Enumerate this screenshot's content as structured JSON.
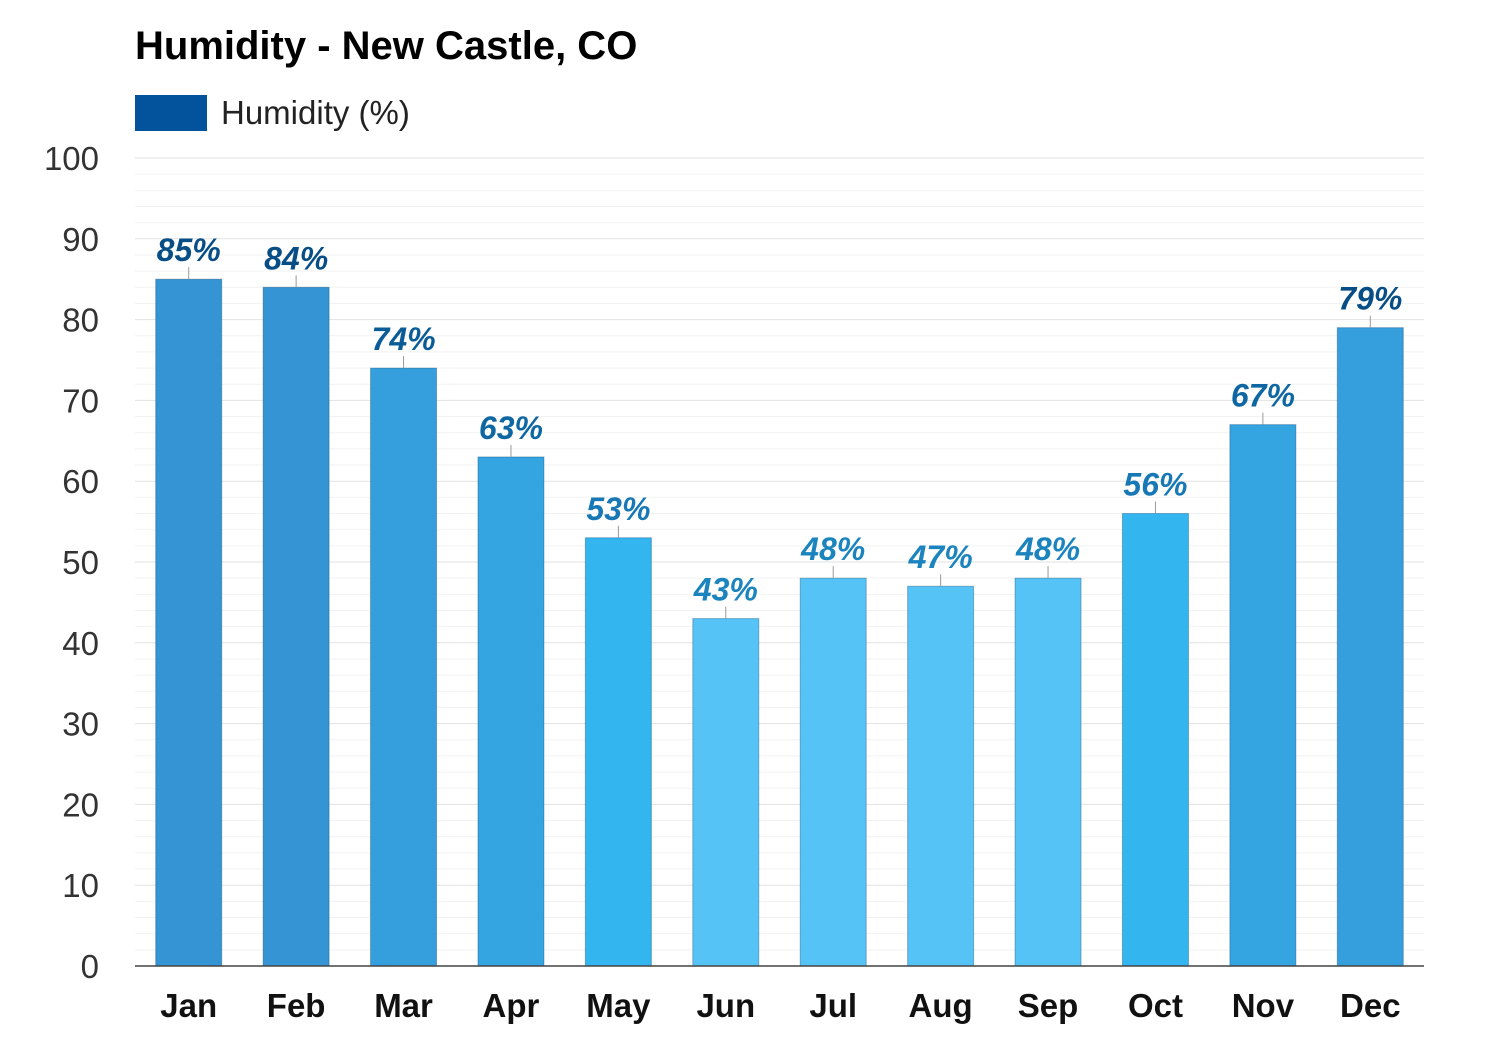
{
  "chart_data": {
    "type": "bar",
    "title": "Humidity - New Castle, CO",
    "legend": {
      "placement": "top-left",
      "entries": [
        {
          "name": "Humidity (%)",
          "color": "#03539c"
        }
      ]
    },
    "categories": [
      "Jan",
      "Feb",
      "Mar",
      "Apr",
      "May",
      "Jun",
      "Jul",
      "Aug",
      "Sep",
      "Oct",
      "Nov",
      "Dec"
    ],
    "series": [
      {
        "name": "Humidity (%)",
        "values": [
          85,
          84,
          74,
          63,
          53,
          43,
          48,
          47,
          48,
          56,
          67,
          79
        ],
        "data_labels": [
          "85%",
          "84%",
          "74%",
          "63%",
          "53%",
          "43%",
          "48%",
          "47%",
          "48%",
          "56%",
          "67%",
          "79%"
        ],
        "bar_colors": [
          "#3595d4",
          "#3595d4",
          "#359fdd",
          "#35a5e2",
          "#33b6f0",
          "#56c3f7",
          "#56c3f7",
          "#56c3f7",
          "#56c3f7",
          "#33b6f0",
          "#35a5e2",
          "#359fdd"
        ],
        "label_colors": [
          "#084e86",
          "#084e86",
          "#0a5c96",
          "#0e67a2",
          "#1778b5",
          "#1b84bf",
          "#1b84bf",
          "#1b84bf",
          "#1b84bf",
          "#1778b5",
          "#0e67a2",
          "#084e86"
        ]
      }
    ],
    "ylim": [
      0,
      100
    ],
    "yticks": [
      "0",
      "10",
      "20",
      "30",
      "40",
      "50",
      "60",
      "70",
      "80",
      "90",
      "100"
    ],
    "xlabel": "",
    "ylabel": "",
    "grid": true
  }
}
